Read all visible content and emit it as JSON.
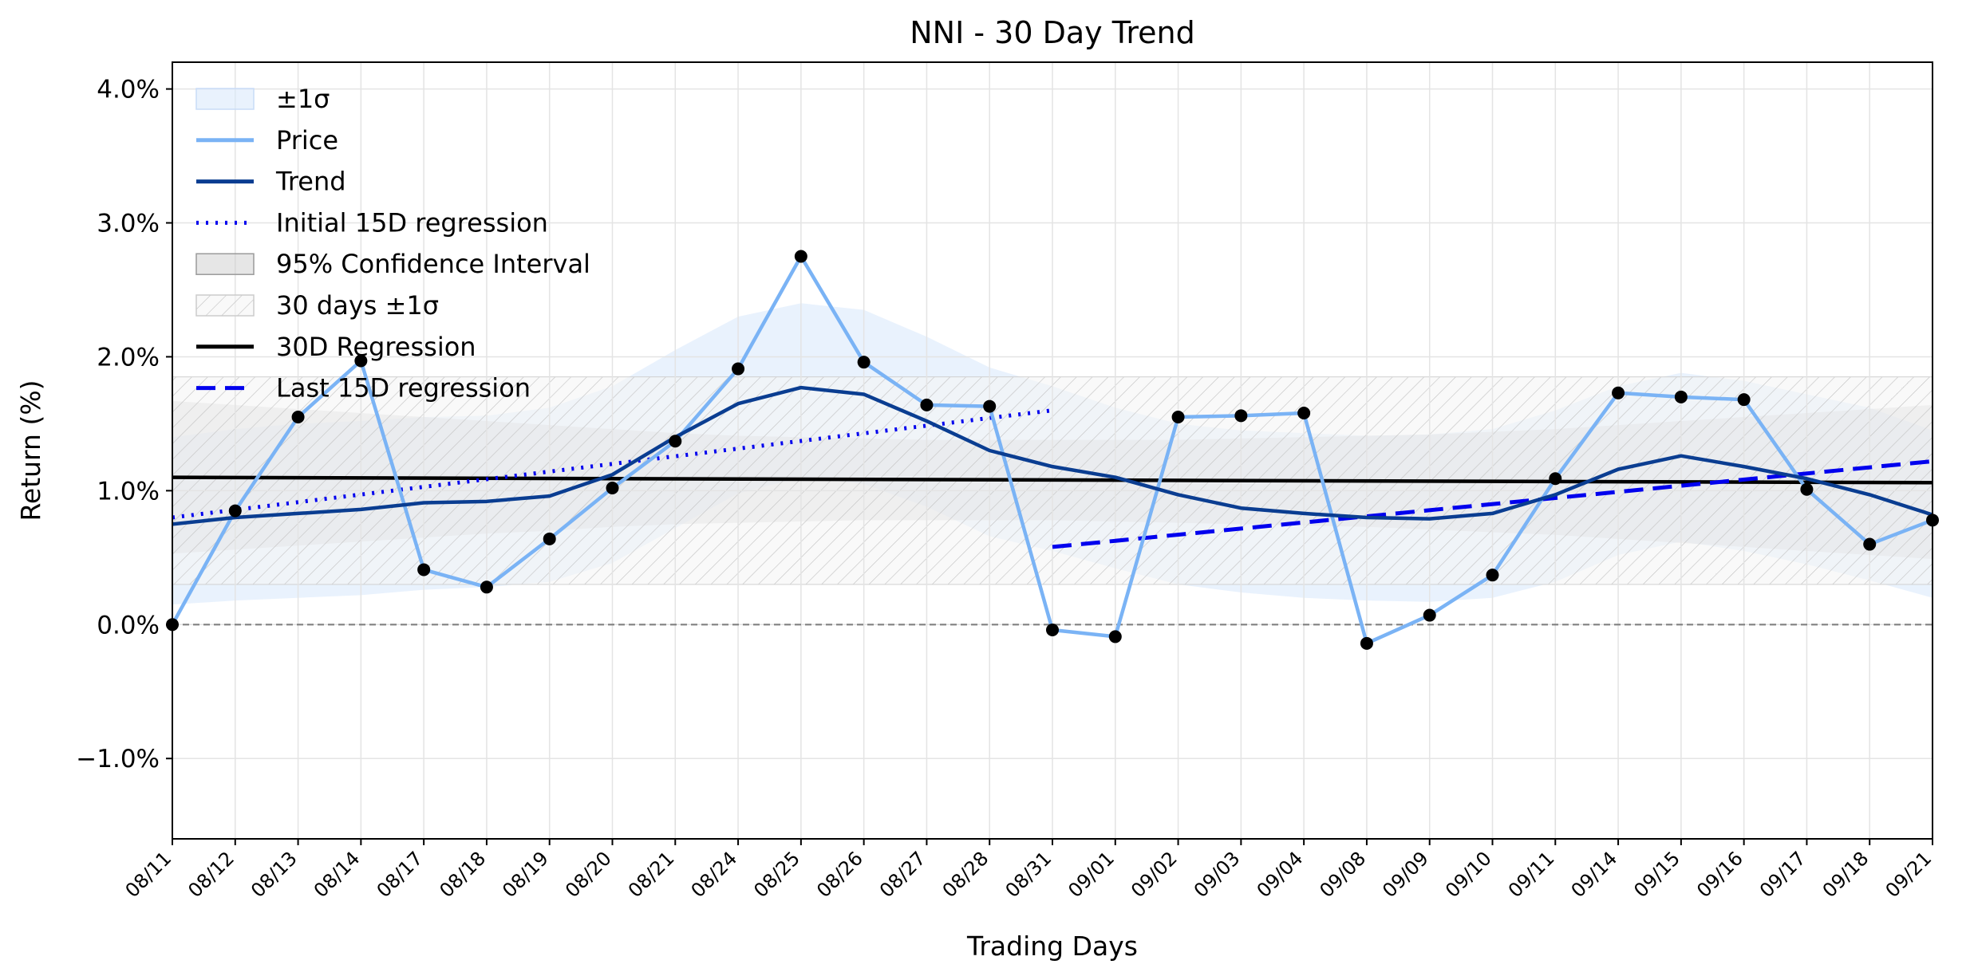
{
  "chart_data": {
    "type": "line",
    "title": "NNI - 30 Day Trend",
    "xlabel": "Trading Days",
    "ylabel": "Return (%)",
    "ylim": [
      -1.6,
      4.2
    ],
    "yticks": [
      -1.0,
      0.0,
      1.0,
      2.0,
      3.0,
      4.0
    ],
    "ytick_labels": [
      "−1.0%",
      "0.0%",
      "1.0%",
      "2.0%",
      "3.0%",
      "4.0%"
    ],
    "categories": [
      "08/11",
      "08/12",
      "08/13",
      "08/14",
      "08/17",
      "08/18",
      "08/19",
      "08/20",
      "08/21",
      "08/24",
      "08/25",
      "08/26",
      "08/27",
      "08/28",
      "08/31",
      "09/01",
      "09/02",
      "09/03",
      "09/04",
      "09/08",
      "09/09",
      "09/10",
      "09/11",
      "09/14",
      "09/15",
      "09/16",
      "09/17",
      "09/18",
      "09/21"
    ],
    "grid": true,
    "legend_position": "top-left",
    "series": [
      {
        "name": "Price",
        "style": "line-markers",
        "color": "#7ab3f5",
        "values": [
          0.0,
          0.85,
          1.55,
          1.97,
          0.41,
          0.28,
          0.64,
          1.02,
          1.37,
          1.91,
          2.75,
          1.96,
          1.64,
          1.63,
          -0.04,
          -0.09,
          1.55,
          1.56,
          1.58,
          -0.14,
          0.07,
          0.37,
          1.09,
          1.73,
          1.7,
          1.68,
          1.01,
          0.6,
          0.78
        ]
      },
      {
        "name": "Trend",
        "style": "line",
        "color": "#0a3d91",
        "values": [
          0.75,
          0.8,
          0.83,
          0.86,
          0.91,
          0.92,
          0.96,
          1.12,
          1.4,
          1.65,
          1.77,
          1.72,
          1.52,
          1.3,
          1.18,
          1.1,
          0.97,
          0.87,
          0.83,
          0.8,
          0.79,
          0.83,
          0.97,
          1.16,
          1.26,
          1.18,
          1.09,
          0.97,
          0.82
        ]
      },
      {
        "name": "±1σ",
        "style": "band",
        "color": "#dbeafc",
        "upper": [
          1.4,
          1.46,
          1.5,
          1.52,
          1.55,
          1.56,
          1.62,
          1.78,
          2.05,
          2.3,
          2.4,
          2.35,
          2.15,
          1.92,
          1.78,
          1.62,
          1.5,
          1.45,
          1.43,
          1.41,
          1.42,
          1.46,
          1.6,
          1.78,
          1.88,
          1.82,
          1.72,
          1.62,
          1.45
        ],
        "lower": [
          0.15,
          0.18,
          0.2,
          0.22,
          0.26,
          0.28,
          0.32,
          0.46,
          0.72,
          0.98,
          1.1,
          1.05,
          0.88,
          0.66,
          0.55,
          0.42,
          0.3,
          0.24,
          0.2,
          0.18,
          0.17,
          0.2,
          0.32,
          0.52,
          0.62,
          0.55,
          0.45,
          0.33,
          0.2
        ]
      },
      {
        "name": "95% Confidence Interval",
        "style": "band",
        "color": "#c8c8c8",
        "upper": [
          1.67,
          1.64,
          1.61,
          1.58,
          1.55,
          1.52,
          1.49,
          1.46,
          1.43,
          1.41,
          1.4,
          1.39,
          1.38,
          1.38,
          1.38,
          1.38,
          1.38,
          1.39,
          1.4,
          1.41,
          1.42,
          1.44,
          1.46,
          1.49,
          1.52,
          1.55,
          1.58,
          1.61,
          1.64
        ],
        "lower": [
          0.53,
          0.56,
          0.59,
          0.62,
          0.65,
          0.68,
          0.7,
          0.73,
          0.75,
          0.76,
          0.77,
          0.78,
          0.78,
          0.78,
          0.78,
          0.77,
          0.76,
          0.75,
          0.74,
          0.73,
          0.71,
          0.69,
          0.67,
          0.64,
          0.61,
          0.58,
          0.55,
          0.52,
          0.49
        ]
      },
      {
        "name": "30 days ±1σ",
        "style": "hatched-band",
        "color": "#bbbbbb",
        "upper": [
          1.85
        ],
        "lower": [
          0.3
        ]
      },
      {
        "name": "30D Regression",
        "style": "solid",
        "color": "#000000",
        "x": [
          "08/11",
          "09/21"
        ],
        "y": [
          1.1,
          1.06
        ]
      },
      {
        "name": "Initial 15D regression",
        "style": "dotted",
        "color": "#0000ee",
        "x": [
          "08/11",
          "08/31"
        ],
        "y": [
          0.8,
          1.6
        ]
      },
      {
        "name": "Last 15D regression",
        "style": "dashed",
        "color": "#0000ee",
        "x": [
          "08/31",
          "09/21"
        ],
        "y": [
          0.58,
          1.22
        ]
      }
    ],
    "zero_line": {
      "y": 0.0,
      "color": "#808080",
      "style": "dashed"
    },
    "legend_order": [
      "±1σ",
      "Price",
      "Trend",
      "Initial 15D regression",
      "95% Confidence Interval",
      "30 days ±1σ",
      "30D Regression",
      "Last 15D regression"
    ]
  }
}
